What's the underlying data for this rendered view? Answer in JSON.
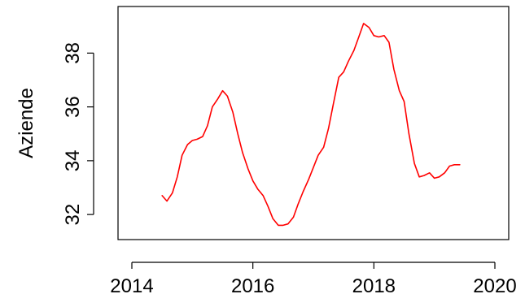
{
  "chart_data": {
    "type": "line",
    "title": "",
    "xlabel": "",
    "ylabel": "Aziende",
    "xlim": [
      2014,
      2020
    ],
    "ylim": [
      31.4,
      39.4
    ],
    "x_ticks": [
      2014,
      2016,
      2018,
      2020
    ],
    "x_tick_labels": [
      "2014",
      "2016",
      "2018",
      "2020"
    ],
    "y_ticks": [
      32,
      34,
      36,
      38
    ],
    "y_tick_labels": [
      "32",
      "34",
      "36",
      "38"
    ],
    "grid": false,
    "legend": "none",
    "colors": {
      "series": "#ff0000",
      "axes": "#000000"
    },
    "series": [
      {
        "x": [
          2014.5,
          2014.58,
          2014.67,
          2014.75,
          2014.83,
          2014.92,
          2015.0,
          2015.08,
          2015.17,
          2015.25,
          2015.33,
          2015.42,
          2015.5,
          2015.58,
          2015.67,
          2015.75,
          2015.83,
          2015.92,
          2016.0,
          2016.08,
          2016.17,
          2016.25,
          2016.33,
          2016.42,
          2016.5,
          2016.58,
          2016.67,
          2016.75,
          2016.83,
          2016.92,
          2017.0,
          2017.08,
          2017.17,
          2017.25,
          2017.33,
          2017.42,
          2017.5,
          2017.58,
          2017.67,
          2017.75,
          2017.83,
          2017.92,
          2018.0,
          2018.08,
          2018.17,
          2018.25,
          2018.33,
          2018.42,
          2018.5,
          2018.58,
          2018.67,
          2018.75,
          2018.83,
          2018.92,
          2019.0,
          2019.08,
          2019.17,
          2019.25,
          2019.33,
          2019.42
        ],
        "values": [
          32.7,
          32.5,
          32.8,
          33.4,
          34.2,
          34.6,
          34.75,
          34.8,
          34.9,
          35.3,
          36.0,
          36.3,
          36.6,
          36.4,
          35.8,
          35.0,
          34.3,
          33.7,
          33.25,
          32.95,
          32.7,
          32.3,
          31.85,
          31.6,
          31.6,
          31.65,
          31.9,
          32.4,
          32.85,
          33.3,
          33.75,
          34.2,
          34.5,
          35.2,
          36.1,
          37.1,
          37.3,
          37.7,
          38.1,
          38.6,
          39.1,
          38.95,
          38.65,
          38.6,
          38.65,
          38.4,
          37.4,
          36.6,
          36.2,
          35.0,
          33.9,
          33.4,
          33.45,
          33.55,
          33.35,
          33.4,
          33.55,
          33.8,
          33.85,
          33.85
        ]
      }
    ]
  }
}
